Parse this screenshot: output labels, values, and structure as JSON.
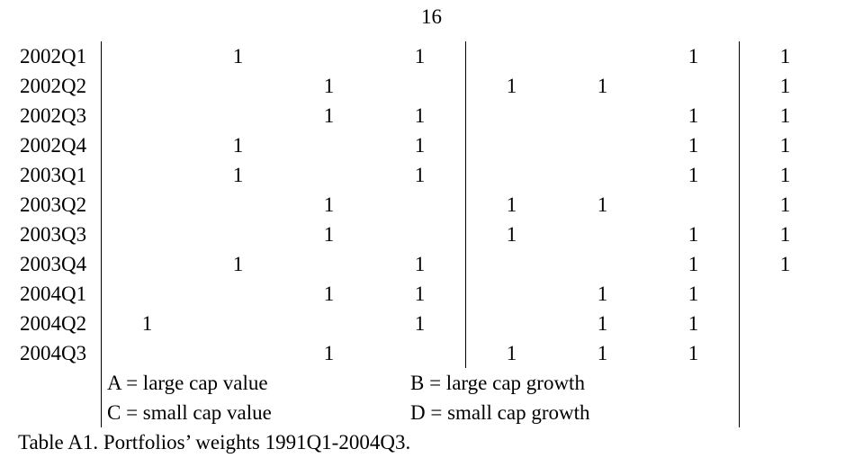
{
  "page_number": "16",
  "rows": [
    {
      "label": "2002Q1",
      "cells": [
        "",
        "1",
        "",
        "1",
        "",
        "",
        "1",
        "1"
      ]
    },
    {
      "label": "2002Q2",
      "cells": [
        "",
        "",
        "1",
        "",
        "1",
        "1",
        "",
        "1"
      ]
    },
    {
      "label": "2002Q3",
      "cells": [
        "",
        "",
        "1",
        "1",
        "",
        "",
        "1",
        "1"
      ]
    },
    {
      "label": "2002Q4",
      "cells": [
        "",
        "1",
        "",
        "1",
        "",
        "",
        "1",
        "1"
      ]
    },
    {
      "label": "2003Q1",
      "cells": [
        "",
        "1",
        "",
        "1",
        "",
        "",
        "1",
        "1"
      ]
    },
    {
      "label": "2003Q2",
      "cells": [
        "",
        "",
        "1",
        "",
        "1",
        "1",
        "",
        "1"
      ]
    },
    {
      "label": "2003Q3",
      "cells": [
        "",
        "",
        "1",
        "",
        "1",
        "",
        "1",
        "1"
      ]
    },
    {
      "label": "2003Q4",
      "cells": [
        "",
        "1",
        "",
        "1",
        "",
        "",
        "1",
        "1"
      ]
    },
    {
      "label": "2004Q1",
      "cells": [
        "",
        "",
        "1",
        "1",
        "",
        "1",
        "1",
        ""
      ]
    },
    {
      "label": "2004Q2",
      "cells": [
        "1",
        "",
        "",
        "1",
        "",
        "1",
        "1",
        ""
      ]
    },
    {
      "label": "2004Q3",
      "cells": [
        "",
        "",
        "1",
        "",
        "1",
        "1",
        "1",
        ""
      ]
    }
  ],
  "legend": {
    "A": "A = large cap value",
    "B": "B = large cap growth",
    "C": "C = small cap value",
    "D": "D = small cap growth"
  },
  "caption": "Table A1. Portfolios’ weights 1991Q1-2004Q3."
}
